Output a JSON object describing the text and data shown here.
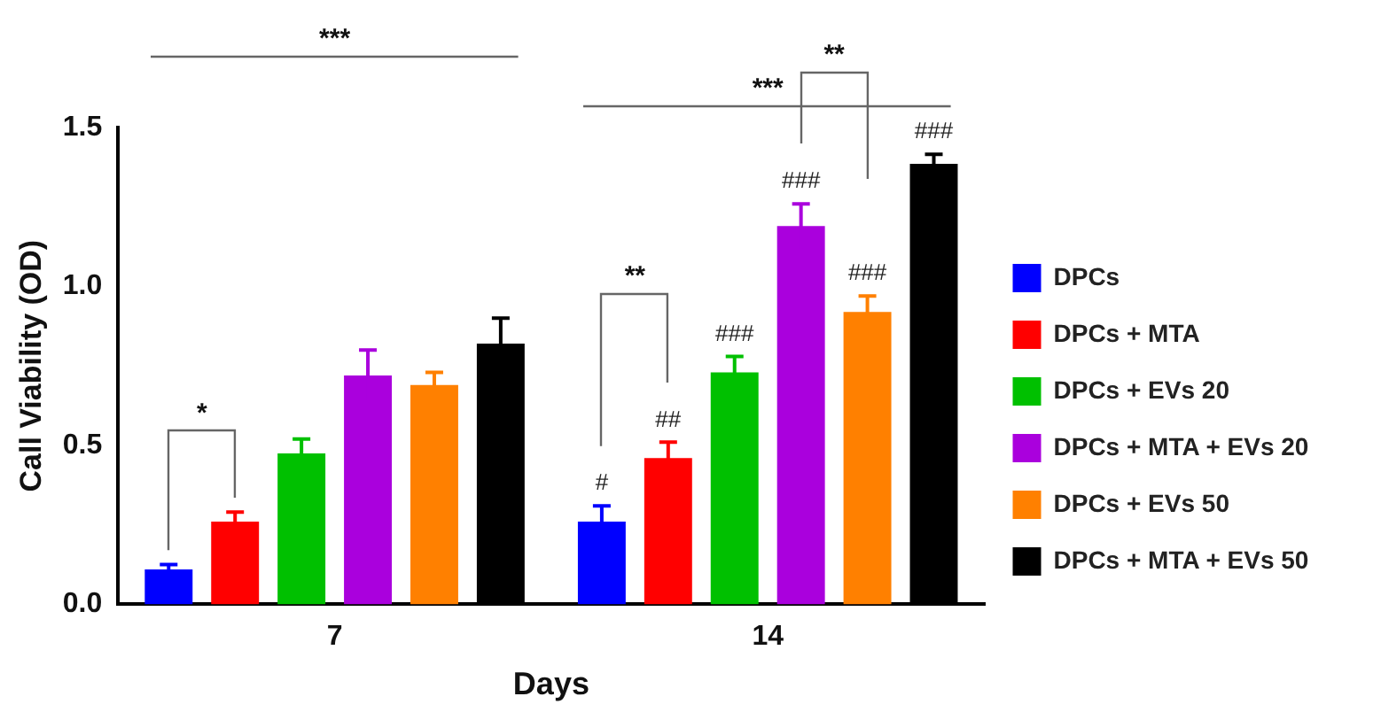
{
  "chart_data": {
    "type": "bar",
    "xlabel": "Days",
    "ylabel": "Call Viability (OD)",
    "categories": [
      "7",
      "14"
    ],
    "series": [
      {
        "name": "DPCs",
        "color": "#0000ff",
        "values": [
          0.11,
          0.26
        ],
        "errors": [
          0.015,
          0.05
        ],
        "value_labels": [
          null,
          "#"
        ]
      },
      {
        "name": "DPCs + MTA",
        "color": "#ff0000",
        "values": [
          0.26,
          0.46
        ],
        "errors": [
          0.03,
          0.05
        ],
        "value_labels": [
          null,
          "##"
        ]
      },
      {
        "name": "DPCs + EVs 20",
        "color": "#00c000",
        "values": [
          0.475,
          0.73
        ],
        "errors": [
          0.045,
          0.05
        ],
        "value_labels": [
          null,
          "###"
        ]
      },
      {
        "name": "DPCs + MTA + EVs 20",
        "color": "#aa00dd",
        "values": [
          0.72,
          1.19
        ],
        "errors": [
          0.08,
          0.07
        ],
        "value_labels": [
          null,
          "###"
        ]
      },
      {
        "name": "DPCs + EVs 50",
        "color": "#ff8000",
        "values": [
          0.69,
          0.92
        ],
        "errors": [
          0.04,
          0.05
        ],
        "value_labels": [
          null,
          "###"
        ]
      },
      {
        "name": "DPCs + MTA + EVs 50",
        "color": "#000000",
        "values": [
          0.82,
          1.386
        ],
        "errors": [
          0.08,
          0.03
        ],
        "value_labels": [
          null,
          "###"
        ]
      }
    ],
    "ylim": [
      0,
      1.5
    ],
    "yticks": [
      {
        "value": 0,
        "label": "0.0"
      },
      {
        "value": 0.5,
        "label": "0.5"
      },
      {
        "value": 1,
        "label": "1.0"
      },
      {
        "value": 1.5,
        "label": "1.5"
      }
    ],
    "grid": false,
    "legend": "right",
    "annotations": [
      "*",
      "**",
      "**",
      "***",
      "***"
    ]
  }
}
